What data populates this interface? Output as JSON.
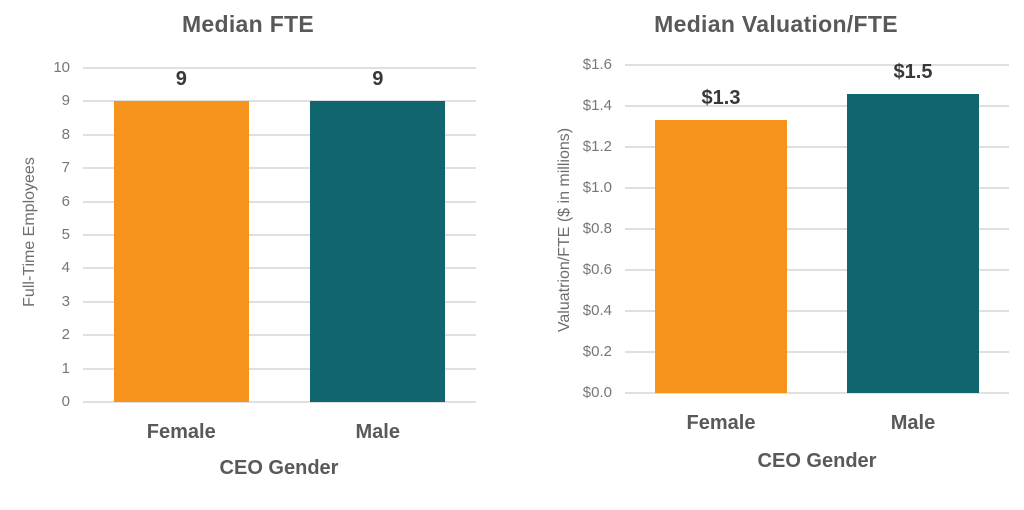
{
  "chart_data": [
    {
      "type": "bar",
      "title": "Median FTE",
      "xlabel": "CEO Gender",
      "ylabel": "Full-Time Employees",
      "categories": [
        "Female",
        "Male"
      ],
      "values": [
        9,
        9
      ],
      "bar_labels": [
        "9",
        "9"
      ],
      "bar_colors": [
        "#F7941E",
        "#10656F"
      ],
      "ylim": [
        0,
        10
      ],
      "ytick_step": 1,
      "yticks": [
        0,
        1,
        2,
        3,
        4,
        5,
        6,
        7,
        8,
        9,
        10
      ],
      "ytick_labels": [
        "0",
        "1",
        "2",
        "3",
        "4",
        "5",
        "6",
        "7",
        "8",
        "9",
        "10"
      ],
      "grid": true,
      "legend": "none"
    },
    {
      "type": "bar",
      "title": "Median Valuation/FTE",
      "xlabel": "CEO Gender",
      "ylabel": "Valuatrion/FTE ($ in millions)",
      "categories": [
        "Female",
        "Male"
      ],
      "values": [
        1.33,
        1.46
      ],
      "bar_labels": [
        "$1.3",
        "$1.5"
      ],
      "bar_colors": [
        "#F7941E",
        "#10656F"
      ],
      "ylim": [
        0,
        1.6
      ],
      "ytick_step": 0.2,
      "yticks": [
        0,
        0.2,
        0.4,
        0.6,
        0.8,
        1.0,
        1.2,
        1.4,
        1.6
      ],
      "ytick_labels": [
        "$0.0",
        "$0.2",
        "$0.4",
        "$0.6",
        "$0.8",
        "$1.0",
        "$1.2",
        "$1.4",
        "$1.6"
      ],
      "grid": true,
      "legend": "none"
    }
  ],
  "colors": {
    "female_bar": "#F7941E",
    "male_bar": "#10656F",
    "title_text": "#595959",
    "tick_text": "#767676",
    "data_label_text": "#383838",
    "gridline": "#E0E0E0",
    "background": "#FFFFFF"
  }
}
